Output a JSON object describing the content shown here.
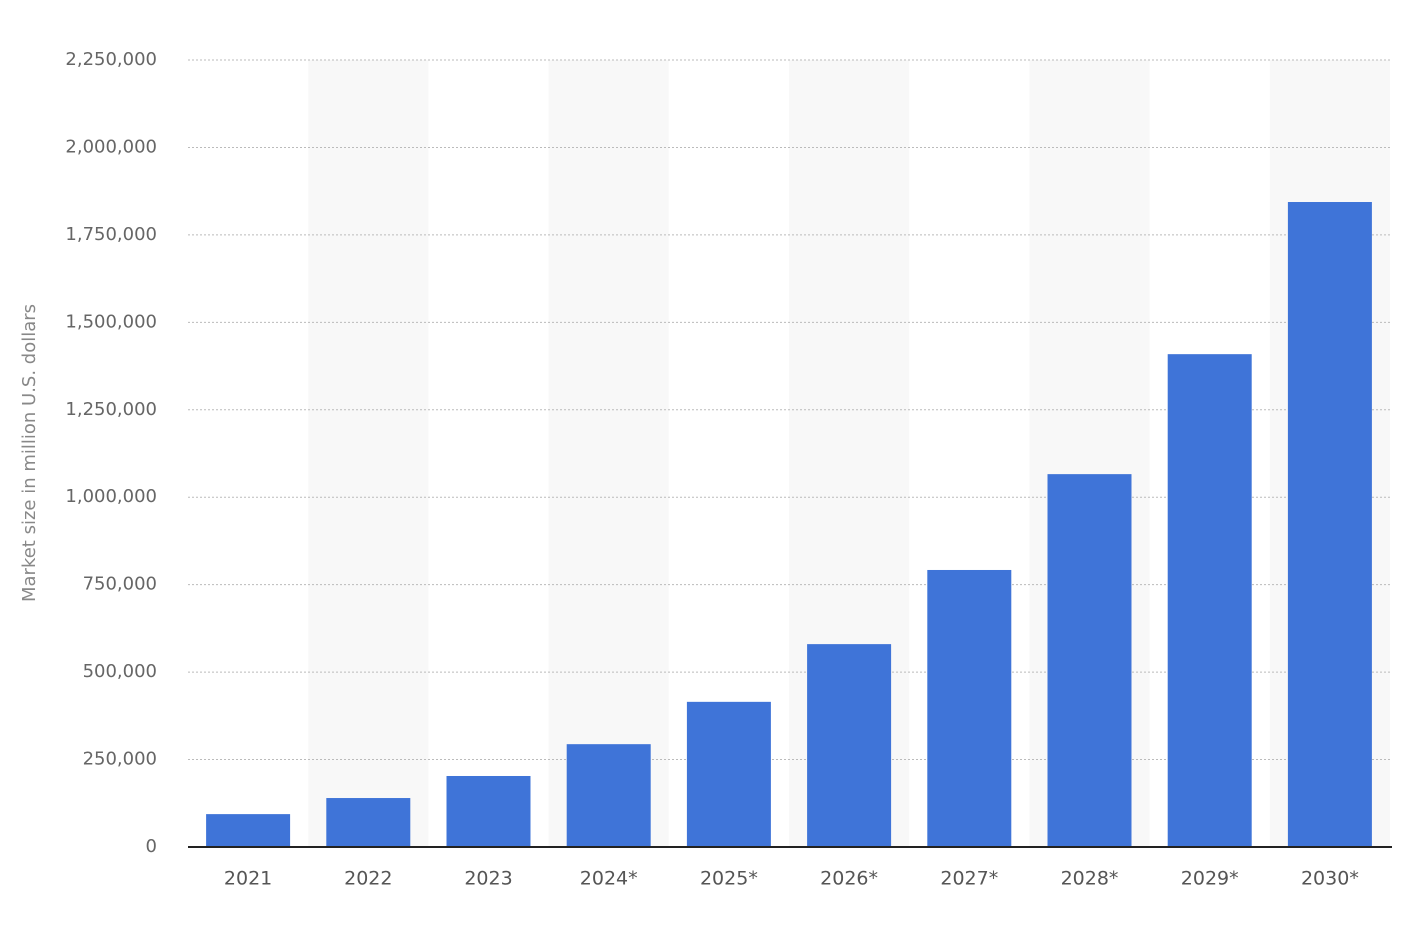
{
  "chart_data": {
    "type": "bar",
    "y_axis_label": "Market size in million U.S. dollars",
    "categories": [
      "2021",
      "2022",
      "2023",
      "2024*",
      "2025*",
      "2026*",
      "2027*",
      "2028*",
      "2029*",
      "2030*"
    ],
    "values": [
      94000,
      140000,
      203000,
      294000,
      415000,
      580000,
      792000,
      1066000,
      1409000,
      1844000
    ],
    "color": "#3f74d8",
    "ylim": [
      0,
      2250000
    ],
    "yticks": [
      0,
      {
        "value": 250000,
        "label": "250,000"
      },
      {
        "value": 500000,
        "label": "500,000"
      },
      {
        "value": 750000,
        "label": "750,000"
      },
      {
        "value": 1000000,
        "label": "1,000,000"
      },
      {
        "value": 1250000,
        "label": "1,250,000"
      },
      {
        "value": 1500000,
        "label": "1,500,000"
      },
      {
        "value": 1750000,
        "label": "1,750,000"
      },
      {
        "value": 2000000,
        "label": "2,000,000"
      },
      {
        "value": 2250000,
        "label": "2,250,000"
      }
    ],
    "grid": true
  }
}
